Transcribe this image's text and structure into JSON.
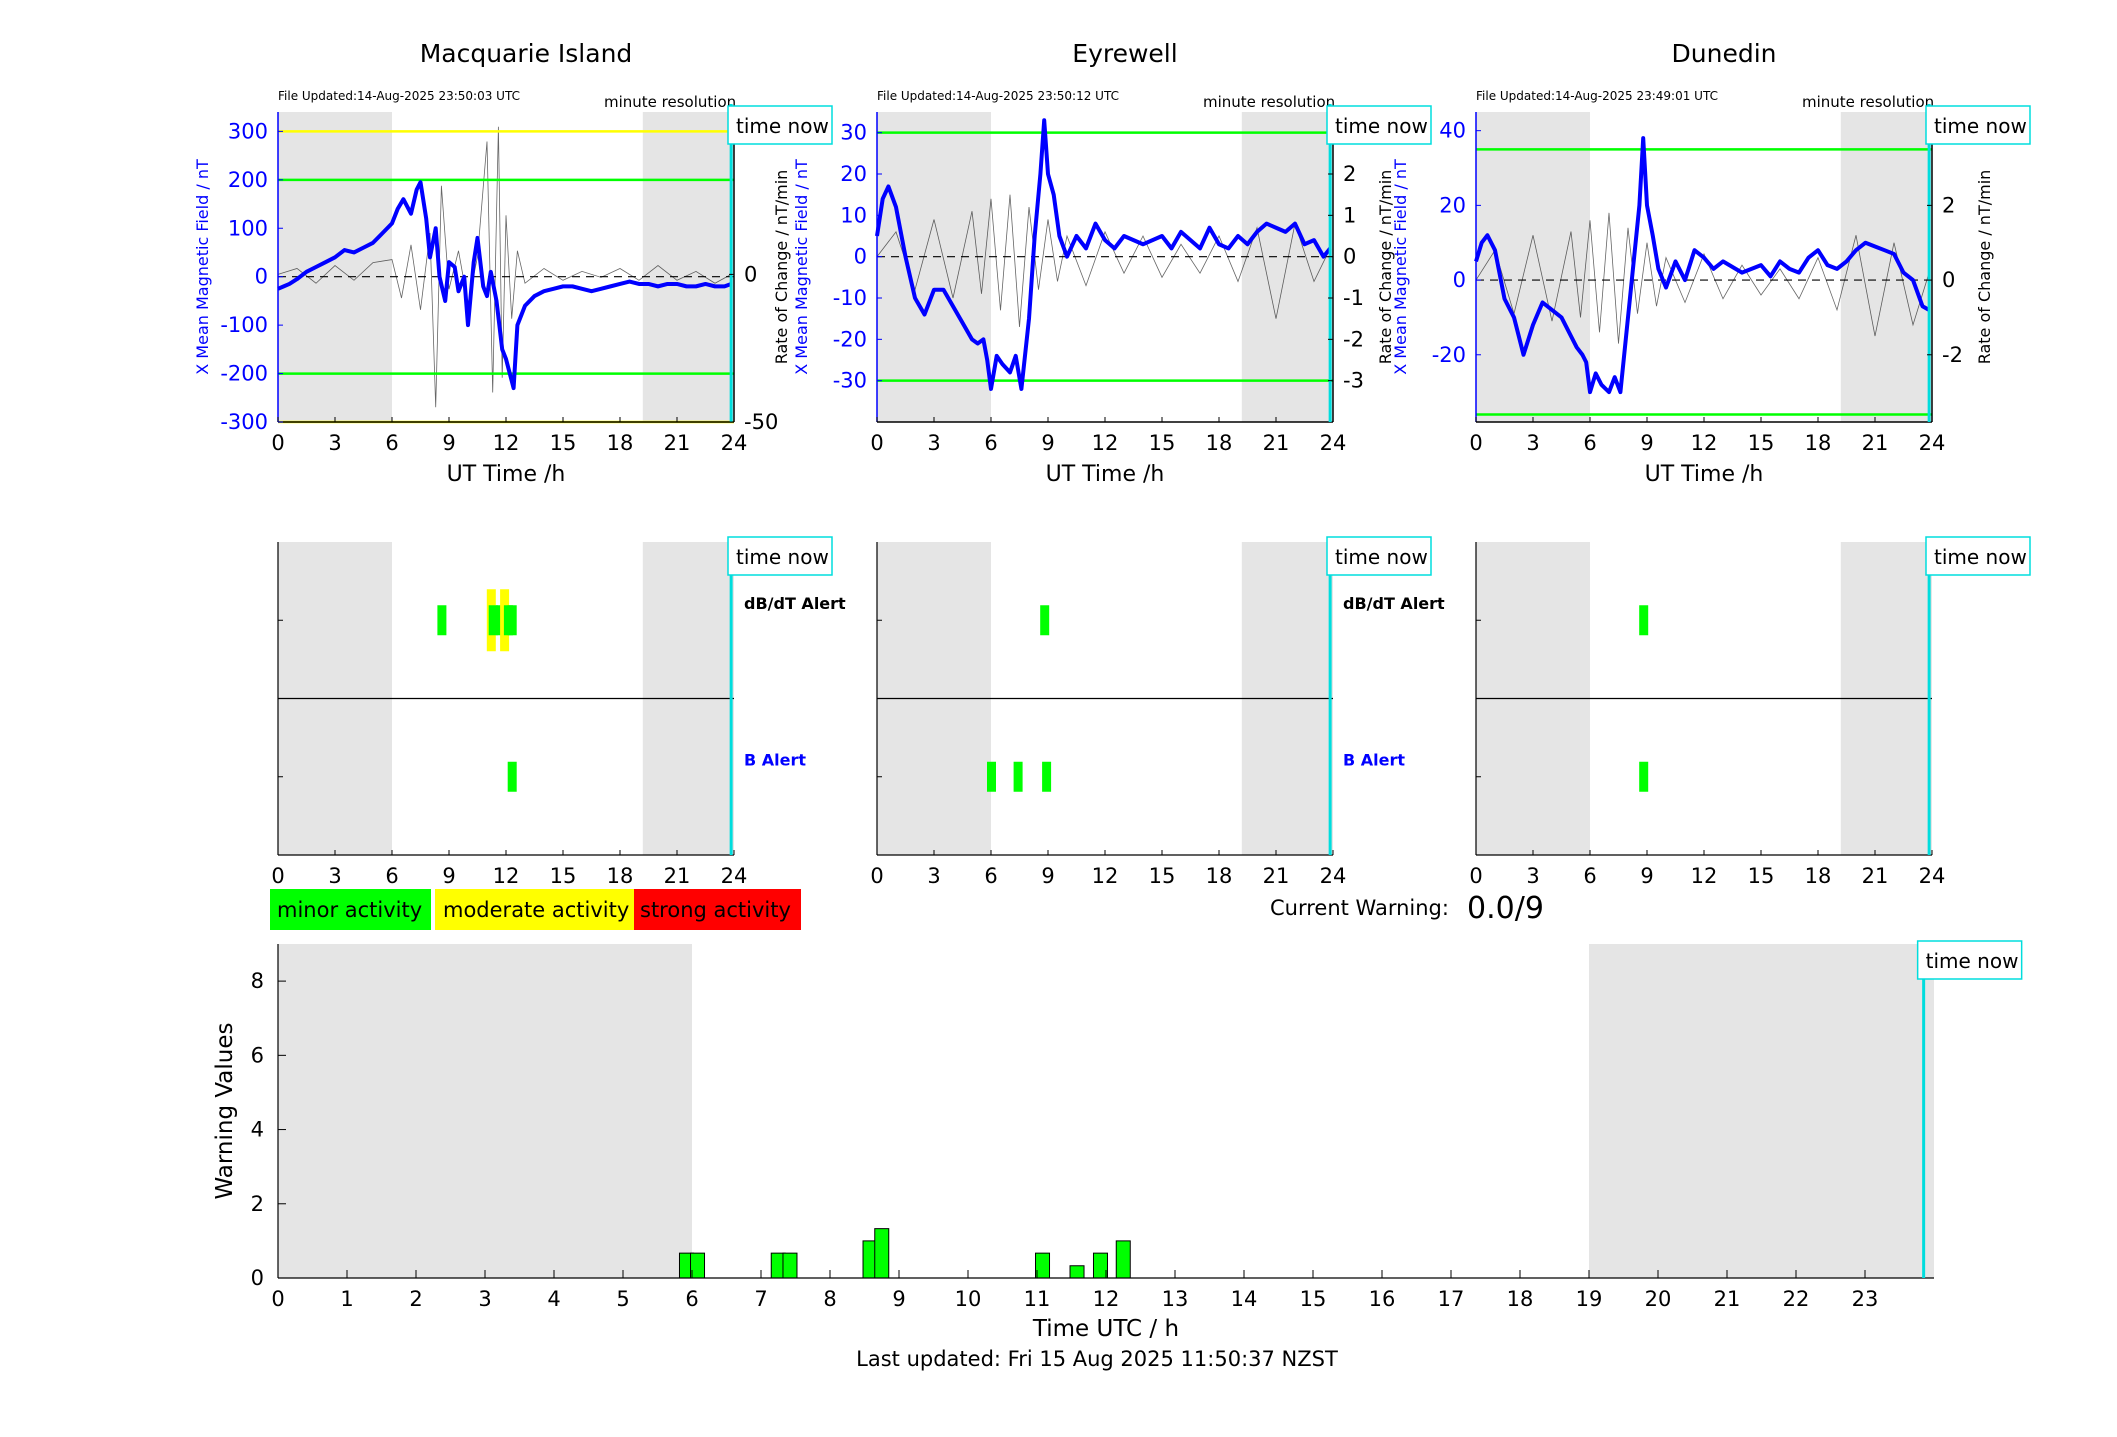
{
  "chart_data": [
    {
      "type": "line",
      "panel": "Macquarie Island magnetometer",
      "title": "Macquarie Island",
      "file_updated": "File Updated:14-Aug-2025 23:50:03 UTC",
      "resolution_label": "minute resolution",
      "time_now_label": "time now",
      "xlabel": "UT Time /h",
      "ylabel_left": "X Mean Magnetic Field / nT",
      "ylabel_right": "",
      "xlim": [
        0,
        24
      ],
      "xticks": [
        "0",
        "3",
        "6",
        "9",
        "12",
        "15",
        "18",
        "21",
        "24"
      ],
      "ylim_left": [
        -300,
        340
      ],
      "yticks_left": [
        "-300",
        "-200",
        "-100",
        "0",
        "100",
        "200",
        "300"
      ],
      "ylim_right": [
        -50,
        55
      ],
      "yticks_right": [
        "-50",
        "0",
        "50"
      ],
      "night_shading_hours": [
        [
          0,
          6
        ],
        [
          19.2,
          24
        ]
      ],
      "time_now_hour": 23.85,
      "threshold_lines": [
        {
          "value": 300,
          "color": "#ffff00"
        },
        {
          "value": 200,
          "color": "#00ff00"
        },
        {
          "value": -200,
          "color": "#00ff00"
        },
        {
          "value": -300,
          "color": "#ffff00"
        }
      ],
      "series": [
        {
          "role": "x-field",
          "color": "#0000ff",
          "x": [
            0,
            0.3,
            0.6,
            1,
            1.5,
            2,
            2.5,
            3,
            3.5,
            4,
            4.5,
            5,
            5.5,
            6,
            6.3,
            6.6,
            7,
            7.3,
            7.5,
            7.8,
            8,
            8.3,
            8.5,
            8.8,
            9,
            9.3,
            9.5,
            9.8,
            10,
            10.3,
            10.5,
            10.8,
            11,
            11.2,
            11.5,
            11.8,
            12,
            12.2,
            12.4,
            12.6,
            13,
            13.5,
            14,
            14.5,
            15,
            15.5,
            16,
            16.5,
            17,
            17.5,
            18,
            18.5,
            19,
            19.5,
            20,
            20.5,
            21,
            21.5,
            22,
            22.5,
            23,
            23.5,
            23.85
          ],
          "values": [
            -25,
            -20,
            -15,
            -5,
            10,
            20,
            30,
            40,
            55,
            50,
            60,
            70,
            90,
            110,
            140,
            160,
            130,
            180,
            195,
            120,
            40,
            100,
            0,
            -50,
            30,
            20,
            -30,
            0,
            -100,
            30,
            80,
            -20,
            -40,
            10,
            -50,
            -150,
            -170,
            -200,
            -230,
            -100,
            -60,
            -40,
            -30,
            -25,
            -20,
            -20,
            -25,
            -30,
            -25,
            -20,
            -15,
            -10,
            -15,
            -15,
            -20,
            -15,
            -15,
            -20,
            -20,
            -15,
            -20,
            -20,
            -15
          ]
        },
        {
          "role": "rate-of-change",
          "color": "#000000",
          "x": [
            0,
            1,
            2,
            3,
            4,
            5,
            6,
            6.5,
            7,
            7.5,
            8,
            8.3,
            8.6,
            9,
            9.5,
            10,
            10.5,
            11,
            11.3,
            11.6,
            11.8,
            12,
            12.3,
            12.6,
            13,
            14,
            15,
            16,
            17,
            18,
            19,
            20,
            21,
            22,
            23,
            23.85
          ],
          "values": [
            0,
            2,
            -3,
            3,
            -2,
            4,
            5,
            -8,
            10,
            -12,
            14,
            -45,
            30,
            -5,
            8,
            -10,
            6,
            45,
            -40,
            50,
            -35,
            20,
            -15,
            8,
            -3,
            2,
            -2,
            1,
            -1,
            2,
            -2,
            3,
            -2,
            1,
            -3,
            0
          ]
        }
      ]
    },
    {
      "type": "line",
      "panel": "Eyrewell magnetometer",
      "title": "Eyrewell",
      "file_updated": "File Updated:14-Aug-2025 23:50:12 UTC",
      "resolution_label": "minute resolution",
      "time_now_label": "time now",
      "xlabel": "UT Time /h",
      "ylabel_left": "X Mean Magnetic Field / nT",
      "ylabel_left_extra": "Rate of Change / nT/min",
      "ylabel_right": "Rate of Change / nT/min",
      "xlim": [
        0,
        24
      ],
      "xticks": [
        "0",
        "3",
        "6",
        "9",
        "12",
        "15",
        "18",
        "21",
        "24"
      ],
      "ylim_left": [
        -40,
        35
      ],
      "yticks_left": [
        "-30",
        "-20",
        "-10",
        "0",
        "10",
        "20",
        "30"
      ],
      "ylim_right": [
        -4,
        3.5
      ],
      "yticks_right": [
        "-3",
        "-2",
        "-1",
        "0",
        "1",
        "2",
        "3"
      ],
      "night_shading_hours": [
        [
          0,
          6
        ],
        [
          19.2,
          24
        ]
      ],
      "time_now_hour": 23.85,
      "threshold_lines": [
        {
          "value": 30,
          "color": "#00ff00"
        },
        {
          "value": -30,
          "color": "#00ff00"
        }
      ],
      "series": [
        {
          "role": "x-field",
          "color": "#0000ff",
          "x": [
            0,
            0.3,
            0.6,
            1,
            1.5,
            2,
            2.5,
            3,
            3.5,
            4,
            4.5,
            5,
            5.3,
            5.6,
            5.8,
            6,
            6.3,
            6.6,
            7,
            7.3,
            7.6,
            8,
            8.3,
            8.6,
            8.8,
            9,
            9.3,
            9.6,
            10,
            10.5,
            11,
            11.5,
            12,
            12.5,
            13,
            14,
            15,
            15.5,
            16,
            16.5,
            17,
            17.5,
            18,
            18.5,
            19,
            19.5,
            20,
            20.5,
            21,
            21.5,
            22,
            22.5,
            23,
            23.5,
            23.85
          ],
          "values": [
            5,
            14,
            17,
            12,
            0,
            -10,
            -14,
            -8,
            -8,
            -12,
            -16,
            -20,
            -21,
            -20,
            -25,
            -32,
            -24,
            -26,
            -28,
            -24,
            -32,
            -15,
            5,
            20,
            33,
            20,
            15,
            5,
            0,
            5,
            2,
            8,
            4,
            2,
            5,
            3,
            5,
            2,
            6,
            4,
            2,
            7,
            3,
            2,
            5,
            3,
            6,
            8,
            7,
            6,
            8,
            3,
            4,
            0,
            2
          ]
        },
        {
          "role": "rate-of-change",
          "color": "#000000",
          "x": [
            0,
            1,
            2,
            3,
            4,
            5,
            5.5,
            6,
            6.5,
            7,
            7.5,
            8,
            8.5,
            9,
            9.5,
            10,
            11,
            12,
            13,
            14,
            15,
            16,
            17,
            18,
            19,
            20,
            21,
            22,
            23,
            23.85
          ],
          "values": [
            0,
            0.6,
            -0.8,
            0.9,
            -1.0,
            1.1,
            -0.9,
            1.4,
            -1.3,
            1.5,
            -1.7,
            1.2,
            -0.8,
            0.9,
            -0.6,
            0.5,
            -0.7,
            0.6,
            -0.4,
            0.5,
            -0.5,
            0.3,
            -0.4,
            0.5,
            -0.6,
            0.7,
            -1.5,
            0.8,
            -0.6,
            0.2
          ]
        }
      ]
    },
    {
      "type": "line",
      "panel": "Dunedin magnetometer",
      "title": "Dunedin",
      "file_updated": "File Updated:14-Aug-2025 23:49:01 UTC",
      "resolution_label": "minute resolution",
      "time_now_label": "time now",
      "xlabel": "UT Time /h",
      "ylabel_left": "X Mean Magnetic Field / nT",
      "ylabel_right": "Rate of Change / nT/min",
      "xlim": [
        0,
        24
      ],
      "xticks": [
        "0",
        "3",
        "6",
        "9",
        "12",
        "15",
        "18",
        "21",
        "24"
      ],
      "ylim_left": [
        -38,
        45
      ],
      "yticks_left": [
        "-20",
        "0",
        "20",
        "40"
      ],
      "ylim_right": [
        -3.8,
        4.5
      ],
      "yticks_right": [
        "-2",
        "0",
        "2",
        "4"
      ],
      "night_shading_hours": [
        [
          0,
          6
        ],
        [
          19.2,
          24
        ]
      ],
      "time_now_hour": 23.85,
      "threshold_lines": [
        {
          "value": 35,
          "color": "#00ff00"
        },
        {
          "value": -36,
          "color": "#00ff00"
        }
      ],
      "series": [
        {
          "role": "x-field",
          "color": "#0000ff",
          "x": [
            0,
            0.3,
            0.6,
            1,
            1.5,
            2,
            2.5,
            3,
            3.5,
            4,
            4.5,
            5,
            5.3,
            5.6,
            5.8,
            6,
            6.3,
            6.6,
            7,
            7.3,
            7.6,
            8,
            8.3,
            8.6,
            8.8,
            9,
            9.3,
            9.6,
            10,
            10.5,
            11,
            11.5,
            12,
            12.5,
            13,
            14,
            15,
            15.5,
            16,
            16.5,
            17,
            17.5,
            18,
            18.5,
            19,
            19.5,
            20,
            20.5,
            21,
            21.5,
            22,
            22.5,
            23,
            23.5,
            23.85
          ],
          "values": [
            5,
            10,
            12,
            8,
            -5,
            -10,
            -20,
            -12,
            -6,
            -8,
            -10,
            -15,
            -18,
            -20,
            -22,
            -30,
            -25,
            -28,
            -30,
            -26,
            -30,
            -10,
            5,
            20,
            38,
            20,
            12,
            3,
            -2,
            5,
            0,
            8,
            6,
            3,
            5,
            2,
            4,
            1,
            5,
            3,
            2,
            6,
            8,
            4,
            3,
            5,
            8,
            10,
            9,
            8,
            7,
            2,
            0,
            -7,
            -8
          ]
        },
        {
          "role": "rate-of-change",
          "color": "#000000",
          "x": [
            0,
            1,
            2,
            3,
            4,
            5,
            5.5,
            6,
            6.5,
            7,
            7.5,
            8,
            8.5,
            9,
            9.5,
            10,
            11,
            12,
            13,
            14,
            15,
            16,
            17,
            18,
            19,
            20,
            21,
            22,
            23,
            23.85
          ],
          "values": [
            0,
            0.8,
            -0.9,
            1.2,
            -1.1,
            1.3,
            -1.0,
            1.6,
            -1.4,
            1.8,
            -1.7,
            1.4,
            -0.9,
            1.0,
            -0.7,
            0.6,
            -0.6,
            0.7,
            -0.5,
            0.4,
            -0.4,
            0.3,
            -0.5,
            0.6,
            -0.8,
            1.2,
            -1.5,
            1.0,
            -1.2,
            0.2
          ]
        }
      ]
    },
    {
      "type": "bar",
      "panel": "Macquarie Island alerts",
      "time_now_label": "time now",
      "xlim": [
        0,
        24
      ],
      "xticks": [
        "0",
        "3",
        "6",
        "9",
        "12",
        "15",
        "18",
        "21",
        "24"
      ],
      "night_shading_hours": [
        [
          0,
          6
        ],
        [
          19.2,
          24
        ]
      ],
      "time_now_hour": 23.85,
      "row_labels": {
        "dbdt": "dB/dT Alert",
        "b": "B Alert"
      },
      "dbdt_alerts": [
        {
          "hour": 8.6,
          "level": "minor"
        },
        {
          "hour": 11.2,
          "level": "moderate"
        },
        {
          "hour": 11.3,
          "level": "minor"
        },
        {
          "hour": 11.7,
          "level": "minor"
        },
        {
          "hour": 11.9,
          "level": "moderate"
        },
        {
          "hour": 12.1,
          "level": "minor"
        },
        {
          "hour": 12.3,
          "level": "minor"
        }
      ],
      "b_alerts": [
        {
          "hour": 12.3,
          "level": "minor"
        }
      ]
    },
    {
      "type": "bar",
      "panel": "Eyrewell alerts",
      "time_now_label": "time now",
      "xlim": [
        0,
        24
      ],
      "xticks": [
        "0",
        "3",
        "6",
        "9",
        "12",
        "15",
        "18",
        "21",
        "24"
      ],
      "night_shading_hours": [
        [
          0,
          6
        ],
        [
          19.2,
          24
        ]
      ],
      "time_now_hour": 23.85,
      "row_labels": {
        "dbdt": "dB/dT Alert",
        "b": "B Alert"
      },
      "dbdt_alerts": [
        {
          "hour": 8.8,
          "level": "minor"
        }
      ],
      "b_alerts": [
        {
          "hour": 6.0,
          "level": "minor"
        },
        {
          "hour": 7.4,
          "level": "minor"
        },
        {
          "hour": 8.9,
          "level": "minor"
        }
      ]
    },
    {
      "type": "bar",
      "panel": "Dunedin alerts",
      "time_now_label": "time now",
      "xlim": [
        0,
        24
      ],
      "xticks": [
        "0",
        "3",
        "6",
        "9",
        "12",
        "15",
        "18",
        "21",
        "24"
      ],
      "night_shading_hours": [
        [
          0,
          6
        ],
        [
          19.2,
          24
        ]
      ],
      "time_now_hour": 23.85,
      "row_labels": {
        "dbdt": "",
        "b": ""
      },
      "dbdt_alerts": [
        {
          "hour": 8.8,
          "level": "minor"
        }
      ],
      "b_alerts": [
        {
          "hour": 8.8,
          "level": "minor"
        }
      ]
    },
    {
      "type": "bar",
      "panel": "Warning values",
      "xlabel": "Time UTC / h",
      "ylabel": "Warning Values",
      "xlim": [
        0,
        24
      ],
      "ylim": [
        0,
        9
      ],
      "xticks": [
        "0",
        "1",
        "2",
        "3",
        "4",
        "5",
        "6",
        "7",
        "8",
        "9",
        "10",
        "11",
        "12",
        "13",
        "14",
        "15",
        "16",
        "17",
        "18",
        "19",
        "20",
        "21",
        "22",
        "23"
      ],
      "yticks": [
        "0",
        "2",
        "4",
        "6",
        "8"
      ],
      "night_shading_hours": [
        [
          0,
          6
        ],
        [
          19,
          24
        ]
      ],
      "time_now_hour": 23.85,
      "time_now_label": "time now",
      "bar_color": "#00ff00",
      "x": [
        5.92,
        6.08,
        7.25,
        7.42,
        8.58,
        8.75,
        11.08,
        11.58,
        11.92,
        12.25
      ],
      "values": [
        0.67,
        0.67,
        0.67,
        0.67,
        1.0,
        1.33,
        0.67,
        0.33,
        0.67,
        1.0
      ]
    }
  ],
  "legend": {
    "minor": {
      "label": "minor activity",
      "color": "#00ff00"
    },
    "moderate": {
      "label": "moderate activity",
      "color": "#ffff00"
    },
    "strong": {
      "label": "strong activity",
      "color": "#ff0000"
    }
  },
  "current_warning": {
    "label": "Current Warning:",
    "value": "0.0/9"
  },
  "footer": "Last updated: Fri 15 Aug 2025 11:50:37 NZST",
  "colors": {
    "night_shading": "#e5e5e5",
    "time_now": "#00dddd",
    "field": "#0000ff",
    "rate": "#000000"
  }
}
